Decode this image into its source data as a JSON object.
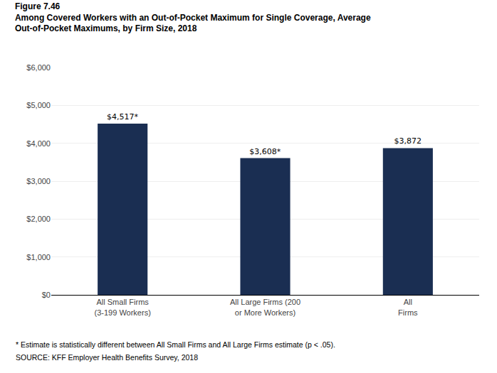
{
  "chart_data": {
    "type": "bar",
    "title": [
      "Figure 7.46",
      "Among Covered Workers with an Out-of-Pocket Maximum for Single Coverage, Average",
      "Out-of-Pocket Maximums, by Firm Size, 2018"
    ],
    "categories": [
      "All Small Firms (3-199 Workers)",
      "All Large Firms (200 or More Workers)",
      "All Firms"
    ],
    "values": [
      4517,
      3608,
      3872
    ],
    "value_labels": [
      "$4,517*",
      "$3,608*",
      "$3,872"
    ],
    "data_labels": true,
    "color": "#1a2e52",
    "ylim": [
      0,
      6000
    ],
    "yticks": [
      {
        "value": 0,
        "label": "$0"
      },
      {
        "value": 1000,
        "label": "$1,000"
      },
      {
        "value": 2000,
        "label": "$2,000"
      },
      {
        "value": 3000,
        "label": "$3,000"
      },
      {
        "value": 4000,
        "label": "$4,000"
      },
      {
        "value": 5000,
        "label": "$5,000"
      },
      {
        "value": 6000,
        "label": "$6,000"
      }
    ],
    "grid": true,
    "annotations": [
      "* Estimate is statistically different between All Small Firms and All Large Firms estimate (p < .05).",
      "SOURCE: KFF Employer Health Benefits Survey, 2018"
    ]
  }
}
